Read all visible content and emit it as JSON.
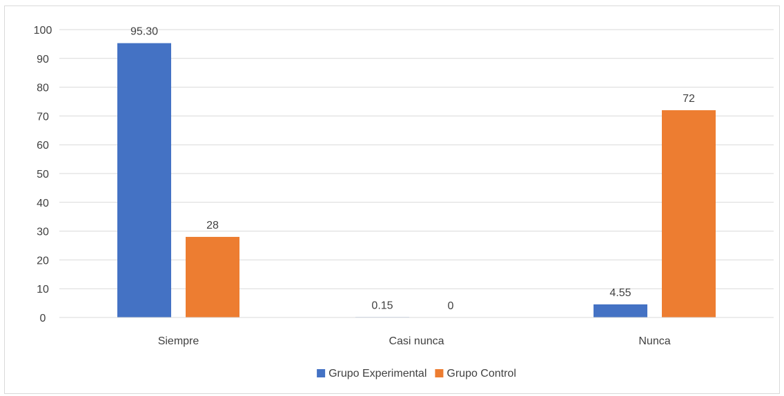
{
  "chart_data": {
    "type": "bar",
    "title": "",
    "xlabel": "",
    "ylabel": "",
    "categories": [
      "Siempre",
      "Casi nunca",
      "Nunca"
    ],
    "series": [
      {
        "name": "Grupo Experimental",
        "color": "#4472C4",
        "values": [
          95.3,
          0.15,
          4.55
        ],
        "labels": [
          "95.30",
          "0.15",
          "4.55"
        ]
      },
      {
        "name": "Grupo Control",
        "color": "#ED7D31",
        "values": [
          28,
          0,
          72
        ],
        "labels": [
          "28",
          "0",
          "72"
        ]
      }
    ],
    "ylim": [
      0,
      100
    ],
    "yticks": [
      "0",
      "10",
      "20",
      "30",
      "40",
      "50",
      "60",
      "70",
      "80",
      "90",
      "100"
    ],
    "grid": true,
    "legend_position": "bottom",
    "gridline_color": "#d9d9d9",
    "axis_color": "#d9d9d9"
  }
}
